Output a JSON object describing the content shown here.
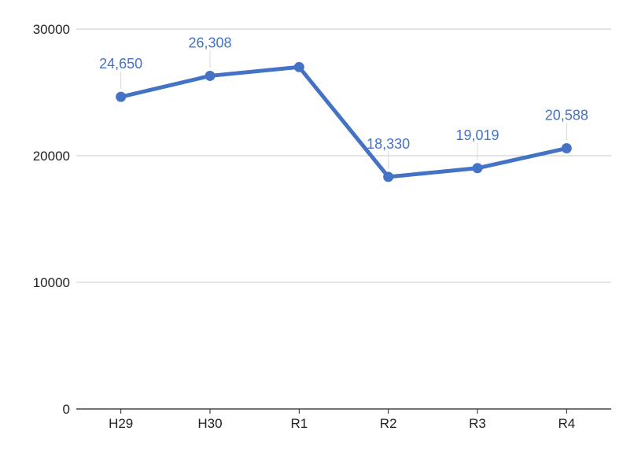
{
  "chart_data": {
    "type": "line",
    "categories": [
      "H29",
      "H30",
      "R1",
      "R2",
      "R3",
      "R4"
    ],
    "series": [
      {
        "values": [
          24650,
          26308,
          27000,
          18330,
          19019,
          20588
        ]
      }
    ],
    "data_labels": [
      "24,650",
      "26,308",
      "",
      "18,330",
      "19,019",
      "20,588"
    ],
    "yticks": [
      "0",
      "10000",
      "20000",
      "30000"
    ],
    "ylim": [
      0,
      30000
    ],
    "grid": true,
    "colors": {
      "line": "#4472C4",
      "label": "#4472C4",
      "grid": "#c8c8c8",
      "axis": "#222222"
    }
  }
}
